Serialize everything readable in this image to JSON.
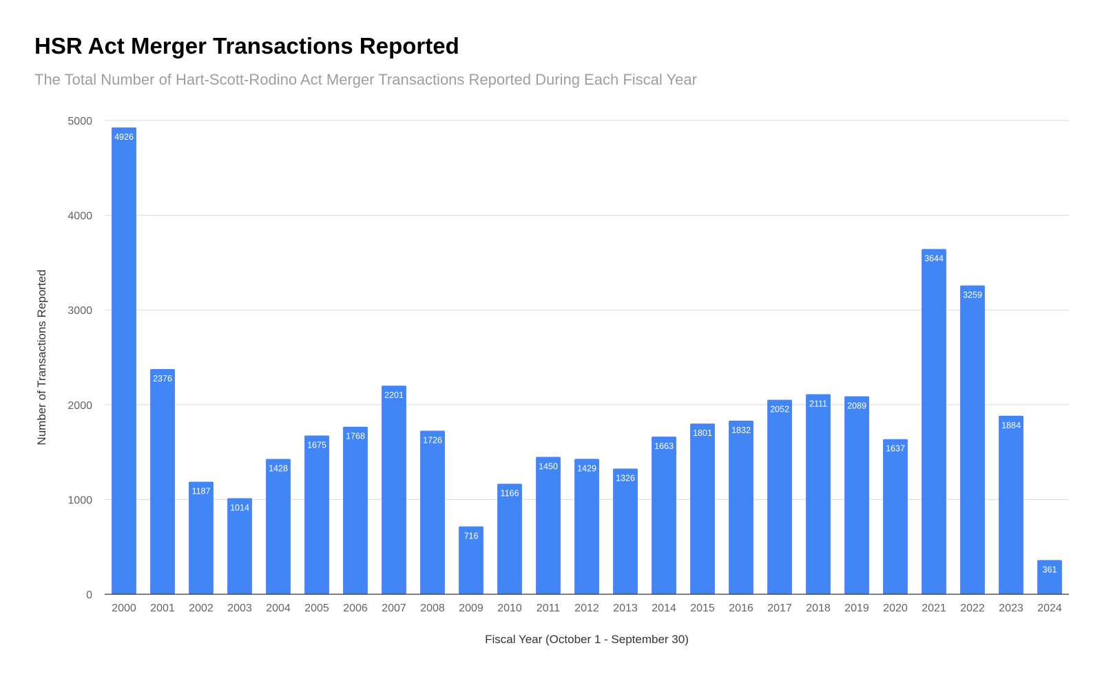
{
  "chart_data": {
    "type": "bar",
    "title": "HSR Act Merger Transactions Reported",
    "subtitle": "The Total Number of Hart-Scott-Rodino Act Merger Transactions Reported During Each Fiscal Year",
    "xlabel": "Fiscal Year (October 1 - September 30)",
    "ylabel": "Number of Transactions Reported",
    "categories": [
      "2000",
      "2001",
      "2002",
      "2003",
      "2004",
      "2005",
      "2006",
      "2007",
      "2008",
      "2009",
      "2010",
      "2011",
      "2012",
      "2013",
      "2014",
      "2015",
      "2016",
      "2017",
      "2018",
      "2019",
      "2020",
      "2021",
      "2022",
      "2023",
      "2024"
    ],
    "values": [
      4926,
      2376,
      1187,
      1014,
      1428,
      1675,
      1768,
      2201,
      1726,
      716,
      1166,
      1450,
      1429,
      1326,
      1663,
      1801,
      1832,
      2052,
      2111,
      2089,
      1637,
      3644,
      3259,
      1884,
      361
    ],
    "ylim": [
      0,
      5000
    ],
    "yticks": [
      0,
      1000,
      2000,
      3000,
      4000,
      5000
    ],
    "grid": true,
    "legend": "none",
    "bar_color": "#4285f4",
    "data_labels": true
  }
}
